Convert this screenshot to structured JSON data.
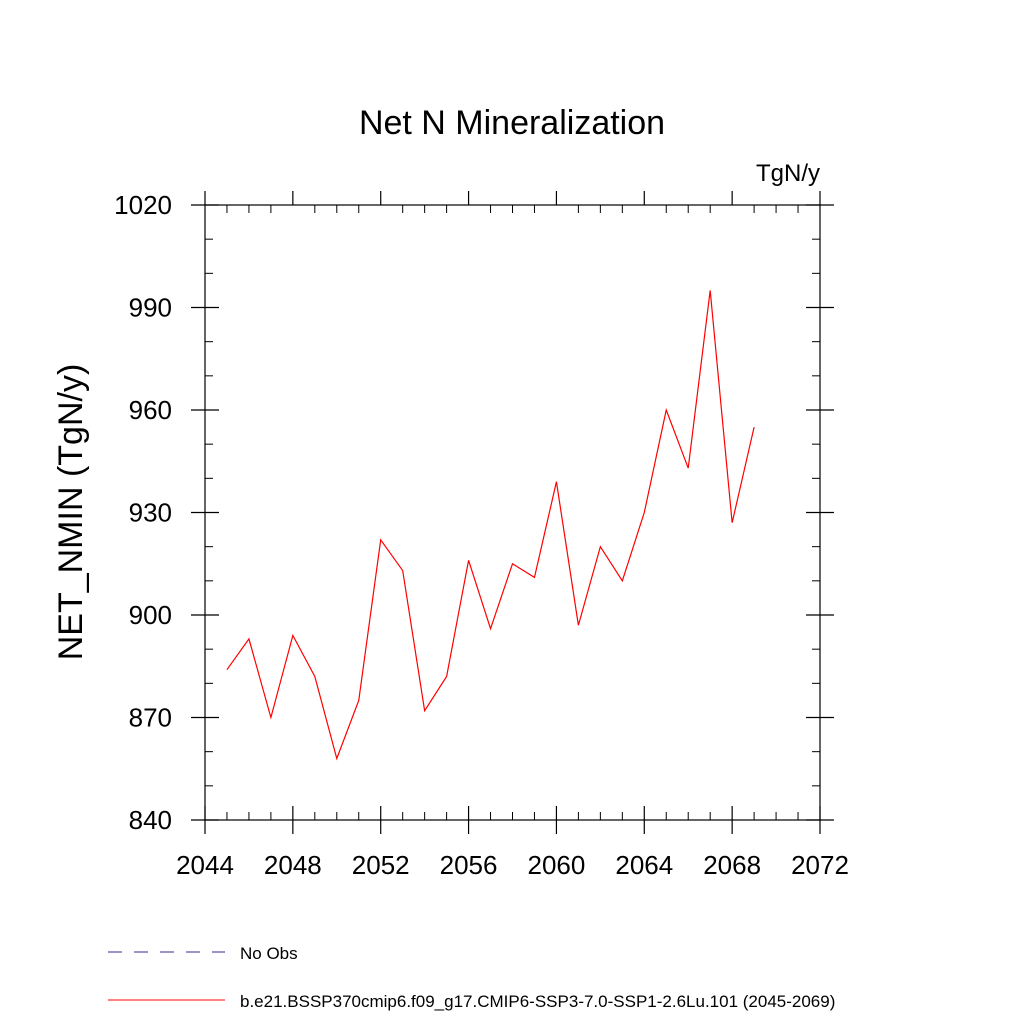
{
  "chart_data": {
    "type": "line",
    "title": "Net N Mineralization",
    "units_label": "TgN/y",
    "ylabel": "NET_NMIN  (TgN/y)",
    "xlabel": "",
    "xlim": [
      2044,
      2072
    ],
    "ylim": [
      840,
      1020
    ],
    "x_ticks": [
      2044,
      2048,
      2052,
      2056,
      2060,
      2064,
      2068,
      2072
    ],
    "y_ticks": [
      840,
      870,
      900,
      930,
      960,
      990,
      1020
    ],
    "x_minor_step": 1,
    "y_minor_step": 10,
    "grid": false,
    "legend_position": "bottom-left",
    "series": [
      {
        "name": "No Obs",
        "style": "dashed",
        "color": "#3a2a8c",
        "x": [],
        "values": []
      },
      {
        "name": "b.e21.BSSP370cmip6.f09_g17.CMIP6-SSP3-7.0-SSP1-2.6Lu.101 (2045-2069)",
        "style": "solid",
        "color": "#ff0000",
        "x": [
          2045,
          2046,
          2047,
          2048,
          2049,
          2050,
          2051,
          2052,
          2053,
          2054,
          2055,
          2056,
          2057,
          2058,
          2059,
          2060,
          2061,
          2062,
          2063,
          2064,
          2065,
          2066,
          2067,
          2068,
          2069
        ],
        "values": [
          884,
          893,
          870,
          894,
          882,
          858,
          875,
          922,
          913,
          872,
          882,
          916,
          896,
          915,
          911,
          939,
          897,
          920,
          910,
          930,
          960,
          943,
          995,
          927,
          955
        ]
      }
    ]
  }
}
